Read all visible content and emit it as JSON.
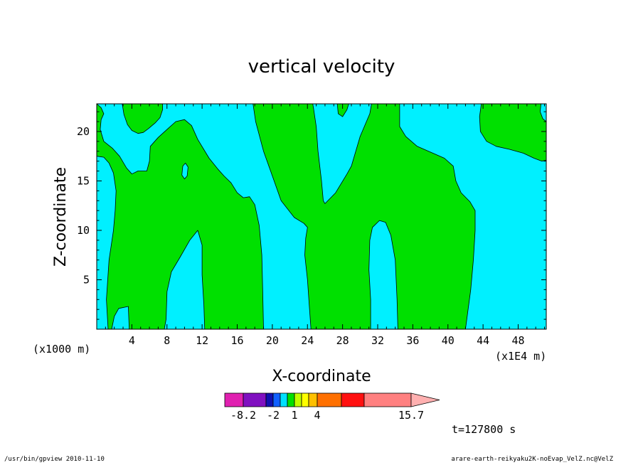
{
  "chart_data": {
    "type": "heatmap",
    "title": "vertical velocity",
    "xlabel": "X-coordinate",
    "ylabel": "Z-coordinate",
    "x_unit_label": "(x1000 m)",
    "x_unit_label2": "(x1E4 m)",
    "xlim": [
      0,
      51.2
    ],
    "ylim": [
      0,
      22.8
    ],
    "xticks": [
      4,
      8,
      12,
      16,
      20,
      24,
      28,
      32,
      36,
      40,
      44,
      48
    ],
    "yticks": [
      5,
      10,
      15,
      20
    ],
    "time_label": "t=127800 s",
    "colorbar": {
      "colors": [
        "#e020b0",
        "#8010c0",
        "#1010b0",
        "#1060ff",
        "#00e0ff",
        "#00e000",
        "#c0ff00",
        "#ffff00",
        "#ffc000",
        "#ff7000",
        "#ff1010",
        "#ff8080",
        "#ffb0b0"
      ],
      "widths": [
        26,
        32,
        10,
        10,
        10,
        10,
        10,
        10,
        12,
        34,
        32,
        66
      ],
      "labels": [
        {
          "text": "-8.2",
          "index": 1
        },
        {
          "text": "-2",
          "index": 3
        },
        {
          "text": "1",
          "index": 6
        },
        {
          "text": "4",
          "index": 9
        },
        {
          "text": "15.7",
          "index": 12
        }
      ]
    },
    "regions": [
      {
        "level": "0 to 1",
        "color": "#00e000",
        "boundary": [
          [
            0,
            22.8
          ],
          [
            0.5,
            22.4
          ],
          [
            0.8,
            21.8
          ],
          [
            0.5,
            21.2
          ],
          [
            0.4,
            20.2
          ],
          [
            0.8,
            19.0
          ],
          [
            1.8,
            18.3
          ],
          [
            2.6,
            17.5
          ],
          [
            3.4,
            16.3
          ],
          [
            4.0,
            15.7
          ],
          [
            4.7,
            16.0
          ],
          [
            5.7,
            16.0
          ],
          [
            6.0,
            17.0
          ],
          [
            6.1,
            18.5
          ],
          [
            7.0,
            19.4
          ],
          [
            8.0,
            20.2
          ],
          [
            9.0,
            21.0
          ],
          [
            10.0,
            21.2
          ],
          [
            10.8,
            20.6
          ],
          [
            11.5,
            19.2
          ],
          [
            12.8,
            17.3
          ],
          [
            13.8,
            16.2
          ],
          [
            14.5,
            15.5
          ],
          [
            15.3,
            14.8
          ],
          [
            16.0,
            13.8
          ],
          [
            16.7,
            13.3
          ],
          [
            17.4,
            13.4
          ],
          [
            18.0,
            12.6
          ],
          [
            18.5,
            10.5
          ],
          [
            18.8,
            7.5
          ],
          [
            18.9,
            4.0
          ],
          [
            19.0,
            0
          ],
          [
            12.3,
            0
          ],
          [
            12.2,
            2.5
          ],
          [
            12.0,
            5.5
          ],
          [
            12.0,
            8.5
          ],
          [
            11.5,
            10.0
          ],
          [
            10.6,
            9.0
          ],
          [
            9.5,
            7.3
          ],
          [
            8.5,
            5.8
          ],
          [
            8.0,
            3.8
          ],
          [
            7.9,
            1.0
          ],
          [
            7.7,
            0
          ],
          [
            3.7,
            0
          ],
          [
            3.6,
            2.3
          ],
          [
            2.5,
            2.1
          ],
          [
            2.0,
            1.3
          ],
          [
            1.7,
            0
          ],
          [
            1.3,
            0
          ],
          [
            1.1,
            3.0
          ],
          [
            1.4,
            7.0
          ],
          [
            1.9,
            10.0
          ],
          [
            2.1,
            12.0
          ],
          [
            2.2,
            14.0
          ],
          [
            1.9,
            15.8
          ],
          [
            1.4,
            16.8
          ],
          [
            0.8,
            17.4
          ],
          [
            0,
            17.5
          ]
        ]
      },
      {
        "level": "0 to 1",
        "color": "#00e000",
        "boundary": [
          [
            2.9,
            22.8
          ],
          [
            3.1,
            21.7
          ],
          [
            3.5,
            20.7
          ],
          [
            4.0,
            20.1
          ],
          [
            4.7,
            19.8
          ],
          [
            5.3,
            19.9
          ],
          [
            5.9,
            20.3
          ],
          [
            6.3,
            20.6
          ],
          [
            6.7,
            20.9
          ],
          [
            7.2,
            21.4
          ],
          [
            7.5,
            22.2
          ],
          [
            7.5,
            22.8
          ]
        ]
      },
      {
        "level": "0 to 1",
        "color": "#00e000",
        "boundary": [
          [
            17.8,
            22.8
          ],
          [
            18.1,
            21.0
          ],
          [
            19.0,
            18.0
          ],
          [
            20.0,
            15.5
          ],
          [
            21.0,
            13.0
          ],
          [
            22.5,
            11.3
          ],
          [
            23.6,
            10.7
          ],
          [
            24.0,
            10.3
          ],
          [
            23.8,
            9.2
          ],
          [
            23.7,
            7.5
          ],
          [
            24.0,
            5.0
          ],
          [
            24.2,
            2.5
          ],
          [
            24.4,
            0
          ],
          [
            31.2,
            0
          ],
          [
            31.2,
            3.0
          ],
          [
            31.0,
            6.0
          ],
          [
            31.1,
            9.0
          ],
          [
            31.4,
            10.3
          ],
          [
            32.2,
            11.0
          ],
          [
            32.9,
            10.8
          ],
          [
            33.5,
            9.5
          ],
          [
            34.0,
            7.0
          ],
          [
            34.2,
            3.0
          ],
          [
            34.3,
            0
          ],
          [
            42.0,
            0
          ],
          [
            42.6,
            4.0
          ],
          [
            42.9,
            7.0
          ],
          [
            43.1,
            10.0
          ],
          [
            43.1,
            12.0
          ],
          [
            42.5,
            12.9
          ],
          [
            41.5,
            13.8
          ],
          [
            40.9,
            15.0
          ],
          [
            40.6,
            16.5
          ],
          [
            39.6,
            17.3
          ],
          [
            38.3,
            17.8
          ],
          [
            36.5,
            18.5
          ],
          [
            35.2,
            19.5
          ],
          [
            34.5,
            20.5
          ],
          [
            34.5,
            22.8
          ],
          [
            31.3,
            22.8
          ],
          [
            31.1,
            21.8
          ],
          [
            30.0,
            19.5
          ],
          [
            29.0,
            16.5
          ],
          [
            28.5,
            15.7
          ],
          [
            27.2,
            13.8
          ],
          [
            26.0,
            12.7
          ],
          [
            25.8,
            13.0
          ],
          [
            25.6,
            15.0
          ],
          [
            25.2,
            18.0
          ],
          [
            25.0,
            20.5
          ],
          [
            24.7,
            22.3
          ],
          [
            24.6,
            22.8
          ],
          [
            27.4,
            22.8
          ],
          [
            27.5,
            21.8
          ],
          [
            28.0,
            21.5
          ],
          [
            28.5,
            22.2
          ],
          [
            28.7,
            22.8
          ]
        ]
      },
      {
        "level": "0 to 1",
        "color": "#00e000",
        "boundary": [
          [
            43.8,
            22.8
          ],
          [
            43.6,
            21.5
          ],
          [
            43.7,
            20.0
          ],
          [
            44.4,
            19.0
          ],
          [
            45.5,
            18.5
          ],
          [
            47.0,
            18.2
          ],
          [
            48.6,
            17.8
          ],
          [
            49.8,
            17.3
          ],
          [
            50.7,
            17.0
          ],
          [
            51.2,
            17.1
          ],
          [
            51.2,
            21.0
          ],
          [
            50.8,
            21.3
          ],
          [
            50.5,
            22.0
          ],
          [
            50.6,
            22.8
          ]
        ]
      },
      {
        "level": "-2 to 0",
        "color": "#00f0ff",
        "boundary": [
          [
            9.8,
            16.5
          ],
          [
            10.1,
            16.8
          ],
          [
            10.4,
            16.4
          ],
          [
            10.3,
            15.5
          ],
          [
            10.0,
            15.2
          ],
          [
            9.7,
            15.6
          ]
        ]
      }
    ]
  },
  "footer": {
    "left": "/usr/bin/gpview  2010-11-10",
    "right": "arare-earth-reikyaku2K-noEvap_VelZ.nc@VelZ"
  }
}
